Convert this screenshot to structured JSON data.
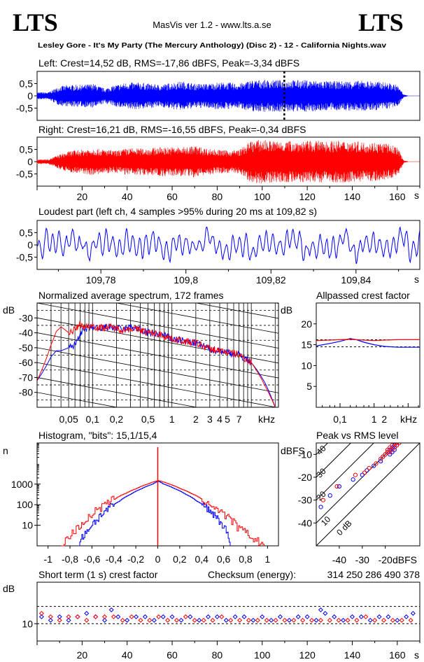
{
  "header": {
    "logo_left": "LTS",
    "logo_right": "LTS",
    "app_title": "MasVis ver 1.2 - www.lts.a.se",
    "file_title": "Lesley Gore - It's My Party (The Mercury Anthology) (Disc 2) - 12 - California Nights.wav"
  },
  "colors": {
    "left": "#0000ff",
    "right": "#ff0000",
    "axis": "#000000"
  },
  "chart_data": [
    {
      "id": "left-waveform",
      "type": "area",
      "title": "Left: Crest=14,52 dB, RMS=-17,86 dBFS, Peak=-3,34 dBFS",
      "series": [
        {
          "color": "#0000ff"
        }
      ],
      "ylim": [
        -1,
        1
      ],
      "yticks": [
        "0,5",
        "0",
        "-0,5"
      ],
      "xlim": [
        0,
        170
      ],
      "envelope_x": [
        0,
        5,
        10,
        15,
        20,
        25,
        30,
        35,
        40,
        45,
        50,
        55,
        60,
        65,
        70,
        75,
        80,
        85,
        90,
        95,
        100,
        105,
        110,
        115,
        120,
        125,
        130,
        135,
        140,
        145,
        150,
        155,
        160,
        163,
        165,
        170
      ],
      "envelope_y": [
        0.15,
        0.15,
        0.4,
        0.45,
        0.45,
        0.5,
        0.3,
        0.45,
        0.55,
        0.55,
        0.5,
        0.45,
        0.55,
        0.6,
        0.5,
        0.5,
        0.55,
        0.55,
        0.5,
        0.65,
        0.65,
        0.65,
        0.65,
        0.65,
        0.65,
        0.62,
        0.6,
        0.6,
        0.62,
        0.62,
        0.6,
        0.55,
        0.45,
        0.05,
        0.01,
        0.01
      ],
      "marker_x": 109.82
    },
    {
      "id": "right-waveform",
      "type": "area",
      "title": "Right: Crest=16,21 dB, RMS=-16,55 dBFS, Peak=-0,34 dBFS",
      "series": [
        {
          "color": "#ff0000"
        }
      ],
      "ylim": [
        -1,
        1
      ],
      "yticks": [
        "0,5",
        "0",
        "-0,5"
      ],
      "xlim": [
        0,
        170
      ],
      "xticks": [
        20,
        40,
        60,
        80,
        100,
        120,
        140,
        160
      ],
      "xunit": "s",
      "envelope_x": [
        0,
        5,
        10,
        15,
        20,
        25,
        30,
        35,
        40,
        45,
        50,
        55,
        60,
        65,
        70,
        75,
        80,
        85,
        90,
        95,
        100,
        105,
        110,
        115,
        120,
        125,
        130,
        135,
        140,
        145,
        150,
        155,
        160,
        163,
        165,
        170
      ],
      "envelope_y": [
        0.1,
        0.1,
        0.3,
        0.45,
        0.5,
        0.55,
        0.5,
        0.45,
        0.55,
        0.55,
        0.55,
        0.6,
        0.6,
        0.6,
        0.65,
        0.55,
        0.5,
        0.45,
        0.5,
        0.85,
        0.9,
        0.85,
        0.85,
        0.85,
        0.85,
        0.85,
        0.85,
        0.85,
        0.85,
        0.8,
        0.8,
        0.75,
        0.6,
        0.05,
        0.01,
        0.01
      ]
    },
    {
      "id": "loudest-part",
      "type": "line",
      "title": "Loudest part (left  ch, 4 samples >95% during 20 ms at 109,82 s)",
      "series": [
        {
          "color": "#0000ff"
        }
      ],
      "ylim": [
        -1,
        1
      ],
      "yticks": [
        "0,5",
        "0",
        "-0,5"
      ],
      "xlim": [
        109.765,
        109.855
      ],
      "xticks": [
        109.78,
        109.8,
        109.82,
        109.84
      ],
      "xticklabels": [
        "109,78",
        "109,8",
        "109,82",
        "109,84"
      ],
      "xunit": "s"
    },
    {
      "id": "average-spectrum",
      "type": "line",
      "title": "Normalized average spectrum, 172 frames",
      "ylabel": "dB",
      "yticks": [
        -30,
        -40,
        -50,
        -60,
        -70,
        -80
      ],
      "ylim": [
        -90,
        -20
      ],
      "xscale": "log",
      "xlim_khz": [
        0.02,
        22
      ],
      "xticks_khz": [
        0.05,
        0.1,
        0.2,
        0.5,
        1,
        2,
        3,
        4,
        5,
        7
      ],
      "xticklabels": [
        "0,05",
        "0,1",
        "0,2",
        "0,5",
        "1",
        "2",
        "3",
        "4",
        "5",
        "7"
      ],
      "xunit": "kHz",
      "series": [
        {
          "color": "#0000ff",
          "x": [
            0.02,
            0.025,
            0.03,
            0.035,
            0.04,
            0.05,
            0.06,
            0.07,
            0.08,
            0.1,
            0.12,
            0.15,
            0.2,
            0.25,
            0.3,
            0.4,
            0.5,
            0.7,
            1,
            1.5,
            2,
            3,
            5,
            7,
            10,
            15,
            20
          ],
          "y": [
            -72,
            -64,
            -56,
            -52,
            -52,
            -50,
            -48,
            -40,
            -38,
            -36,
            -38,
            -36,
            -37,
            -38,
            -36,
            -38,
            -40,
            -41,
            -44,
            -46,
            -47,
            -51,
            -53,
            -55,
            -60,
            -74,
            -90
          ]
        },
        {
          "color": "#ff0000",
          "x": [
            0.02,
            0.025,
            0.03,
            0.035,
            0.04,
            0.05,
            0.06,
            0.07,
            0.08,
            0.1,
            0.12,
            0.15,
            0.2,
            0.25,
            0.3,
            0.4,
            0.5,
            0.7,
            1,
            1.5,
            2,
            3,
            5,
            7,
            10,
            15,
            20
          ],
          "y": [
            -72,
            -60,
            -48,
            -39,
            -36,
            -40,
            -38,
            -34,
            -36,
            -35,
            -37,
            -36,
            -37,
            -38,
            -37,
            -38,
            -40,
            -41,
            -44,
            -46,
            -47,
            -51,
            -53,
            -55,
            -60,
            -76,
            -90
          ]
        }
      ]
    },
    {
      "id": "allpassed-crest-factor",
      "type": "line",
      "title": "Allpassed crest factor",
      "ylabel": "dB",
      "yticks": [
        20,
        15,
        10,
        5
      ],
      "ylim": [
        0,
        25
      ],
      "xscale": "log",
      "xlim_khz": [
        0.02,
        22
      ],
      "xticks_khz": [
        0.1,
        1,
        2
      ],
      "xticklabels": [
        "0,1",
        "1",
        "2"
      ],
      "xunit": "kHz",
      "reference_lines": [
        16.2,
        14.5
      ],
      "series": [
        {
          "color": "#0000ff",
          "x": [
            0.02,
            0.05,
            0.1,
            0.2,
            0.3,
            0.5,
            1,
            2,
            5,
            10,
            22
          ],
          "y": [
            14.7,
            15.3,
            15.8,
            16.5,
            16.2,
            15.6,
            15.0,
            14.6,
            14.4,
            14.4,
            14.4
          ]
        },
        {
          "color": "#ff0000",
          "x": [
            0.02,
            0.05,
            0.1,
            0.2,
            0.3,
            0.5,
            1,
            2,
            5,
            10,
            22
          ],
          "y": [
            16.0,
            16.1,
            16.2,
            16.3,
            16.2,
            16.1,
            16.0,
            16.1,
            16.2,
            16.2,
            16.2
          ]
        }
      ]
    },
    {
      "id": "histogram",
      "type": "line",
      "title": "Histogram, \"bits\": 15,1/15,4",
      "ylabel": "n",
      "yscale": "log",
      "ylim": [
        1,
        100000
      ],
      "yticks": [
        1000,
        100,
        10
      ],
      "xlim": [
        -1.1,
        1.1
      ],
      "xticks": [
        -1,
        -0.8,
        -0.6,
        -0.4,
        -0.2,
        0,
        0.2,
        0.4,
        0.6,
        0.8,
        1
      ],
      "xticklabels": [
        "-1",
        "-0,8",
        "-0,6",
        "-0,4",
        "-0,2",
        "0",
        "0,2",
        "0,4",
        "0,6",
        "0,8",
        "1"
      ],
      "series": [
        {
          "color": "#0000ff",
          "x": [
            -0.72,
            -0.68,
            -0.62,
            -0.55,
            -0.45,
            -0.35,
            -0.25,
            -0.15,
            -0.05,
            0,
            0.05,
            0.15,
            0.25,
            0.35,
            0.45,
            0.55,
            0.62,
            0.66
          ],
          "y": [
            1,
            3,
            8,
            20,
            60,
            150,
            320,
            600,
            1000,
            1400,
            1000,
            600,
            320,
            150,
            60,
            18,
            5,
            1
          ]
        },
        {
          "color": "#ff0000",
          "x": [
            -0.88,
            -0.8,
            -0.72,
            -0.62,
            -0.5,
            -0.4,
            -0.3,
            -0.2,
            -0.1,
            0,
            0.1,
            0.2,
            0.3,
            0.4,
            0.5,
            0.62,
            0.72,
            0.8,
            0.88,
            0.97
          ],
          "y": [
            1,
            3,
            8,
            25,
            80,
            180,
            350,
            600,
            1000,
            1500,
            1000,
            600,
            350,
            180,
            80,
            25,
            8,
            4,
            2,
            1
          ]
        }
      ]
    },
    {
      "id": "peak-vs-rms",
      "type": "scatter",
      "title": "Peak vs RMS level",
      "ylabel": "dBFS",
      "xlabel": "dBFS",
      "xlim": [
        -50,
        -5
      ],
      "ylim": [
        -50,
        -5
      ],
      "xticks": [
        -40,
        -30,
        -20
      ],
      "yticks": [
        -10,
        -20,
        -30,
        -40
      ],
      "crest_lines": [
        {
          "label": "0 dB",
          "crest": 0
        },
        {
          "label": "10",
          "crest": 10
        },
        {
          "label": "20",
          "crest": 20
        },
        {
          "label": "30",
          "crest": 30
        },
        {
          "label": "40",
          "crest": 40
        }
      ],
      "series": [
        {
          "color": "#0000ff",
          "x": [
            -48,
            -44,
            -40,
            -34,
            -30,
            -28,
            -25,
            -22,
            -21,
            -20,
            -19,
            -18,
            -18,
            -17,
            -17,
            -16,
            -16,
            -15
          ],
          "y": [
            -33,
            -28,
            -24,
            -21,
            -19,
            -17,
            -15,
            -13,
            -11,
            -10,
            -9,
            -10,
            -8,
            -9,
            -7,
            -8,
            -6,
            -6
          ]
        },
        {
          "color": "#ff0000",
          "x": [
            -47,
            -41,
            -33,
            -29,
            -27,
            -24,
            -22,
            -21,
            -20,
            -19,
            -19,
            -18,
            -18,
            -17,
            -17,
            -16,
            -16,
            -15,
            -15,
            -14
          ],
          "y": [
            -30,
            -24,
            -19,
            -18,
            -16,
            -14,
            -12,
            -11,
            -10,
            -9,
            -8,
            -9,
            -7,
            -8,
            -6,
            -7,
            -5,
            -6,
            -5,
            -5
          ]
        }
      ]
    },
    {
      "id": "short-term-crest",
      "type": "scatter",
      "title": "Short term (1 s) crest factor",
      "checksum_label": "Checksum (energy):",
      "checksum_value": "314 250 286 490 378",
      "ylabel": "dB",
      "yticks": [
        10
      ],
      "ylim": [
        5,
        22
      ],
      "reference_lines": [
        10,
        15
      ],
      "xlim": [
        0,
        170
      ],
      "xticks": [
        20,
        40,
        60,
        80,
        100,
        120,
        140,
        160
      ],
      "xunit": "s",
      "series": [
        {
          "color": "#0000ff",
          "x": [
            2,
            6,
            10,
            14,
            18,
            22,
            26,
            30,
            33,
            36,
            40,
            44,
            48,
            52,
            56,
            60,
            64,
            68,
            72,
            76,
            80,
            84,
            88,
            92,
            96,
            100,
            104,
            108,
            112,
            116,
            120,
            124,
            126,
            128,
            132,
            136,
            140,
            144,
            148,
            152,
            156,
            160,
            164,
            167
          ],
          "y": [
            12,
            11,
            12,
            11,
            12,
            13,
            12,
            11,
            14,
            12,
            11,
            12,
            12,
            11,
            12,
            12,
            11,
            12,
            11,
            12,
            12,
            11,
            12,
            12,
            11,
            12,
            11,
            12,
            11,
            12,
            12,
            11,
            14,
            13,
            12,
            11,
            12,
            12,
            11,
            12,
            12,
            11,
            12,
            13
          ]
        },
        {
          "color": "#ff0000",
          "x": [
            2,
            6,
            10,
            14,
            18,
            22,
            26,
            30,
            34,
            38,
            42,
            46,
            50,
            54,
            58,
            62,
            66,
            70,
            74,
            78,
            82,
            86,
            90,
            94,
            98,
            102,
            106,
            110,
            114,
            118,
            122,
            126,
            130,
            134,
            138,
            142,
            146,
            150,
            154,
            158,
            162,
            166
          ],
          "y": [
            13,
            12,
            11,
            12,
            12,
            11,
            12,
            12,
            12,
            11,
            12,
            11,
            11,
            12,
            11,
            11,
            12,
            11,
            11,
            11,
            12,
            11,
            11,
            11,
            11,
            11,
            11,
            11,
            11,
            11,
            11,
            11,
            11,
            11,
            11,
            11,
            12,
            11,
            11,
            11,
            11,
            11
          ]
        }
      ]
    }
  ]
}
